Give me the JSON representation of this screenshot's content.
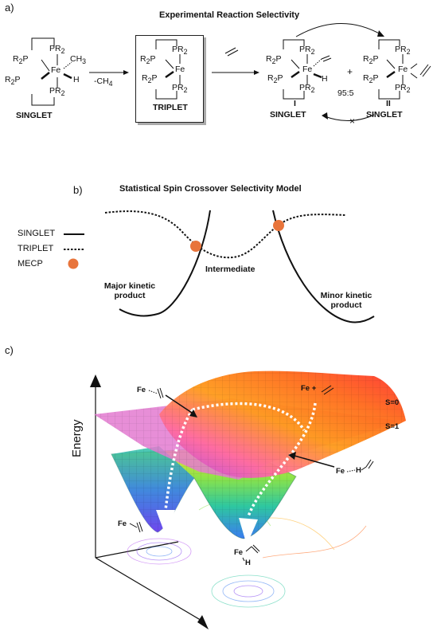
{
  "panel_a": {
    "label": "a)",
    "title": "Experimental Reaction Selectivity",
    "reactant": {
      "metal": "Fe",
      "ligand_top": "PR",
      "ligand_left": "R",
      "ch3": "CH",
      "h": "H",
      "spin": "SINGLET"
    },
    "arrow_label": "-CH",
    "intermediate": {
      "metal": "Fe",
      "spin": "TRIPLET"
    },
    "product_I": {
      "label": "I",
      "metal": "Fe",
      "h": "H",
      "spin": "SINGLET"
    },
    "plus": "+",
    "ratio": "95:5",
    "product_II": {
      "label": "II",
      "metal": "Fe",
      "spin": "SINGLET"
    },
    "ligand_text": "PR",
    "ligand_left_text": "R",
    "ligand_p": "P",
    "subscript_2": "2",
    "subscript_3": "3",
    "subscript_4": "4",
    "blocked_mark": "×"
  },
  "panel_b": {
    "label": "b)",
    "title": "Statistical Spin Crossover Selectivity Model",
    "legend": [
      {
        "name": "SINGLET",
        "style": "solid"
      },
      {
        "name": "TRIPLET",
        "style": "dotted"
      },
      {
        "name": "MECP",
        "style": "dot"
      }
    ],
    "mecp_color": "#e8743b",
    "annotations": {
      "intermediate": "Intermediate",
      "major_1": "Major kinetic",
      "major_2": "product",
      "minor_1": "Minor kinetic",
      "minor_2": "product"
    }
  },
  "panel_c": {
    "label": "c)",
    "axis_label": "Energy",
    "s0": "S=0",
    "s1": "S=1",
    "fe_plus": "Fe +",
    "fe": "Fe",
    "h": "H",
    "surface_colors": [
      "#ff3030",
      "#ff8a1a",
      "#ffe033",
      "#8ae34a",
      "#2ec7a0",
      "#3a7cf0",
      "#b04af0"
    ]
  }
}
